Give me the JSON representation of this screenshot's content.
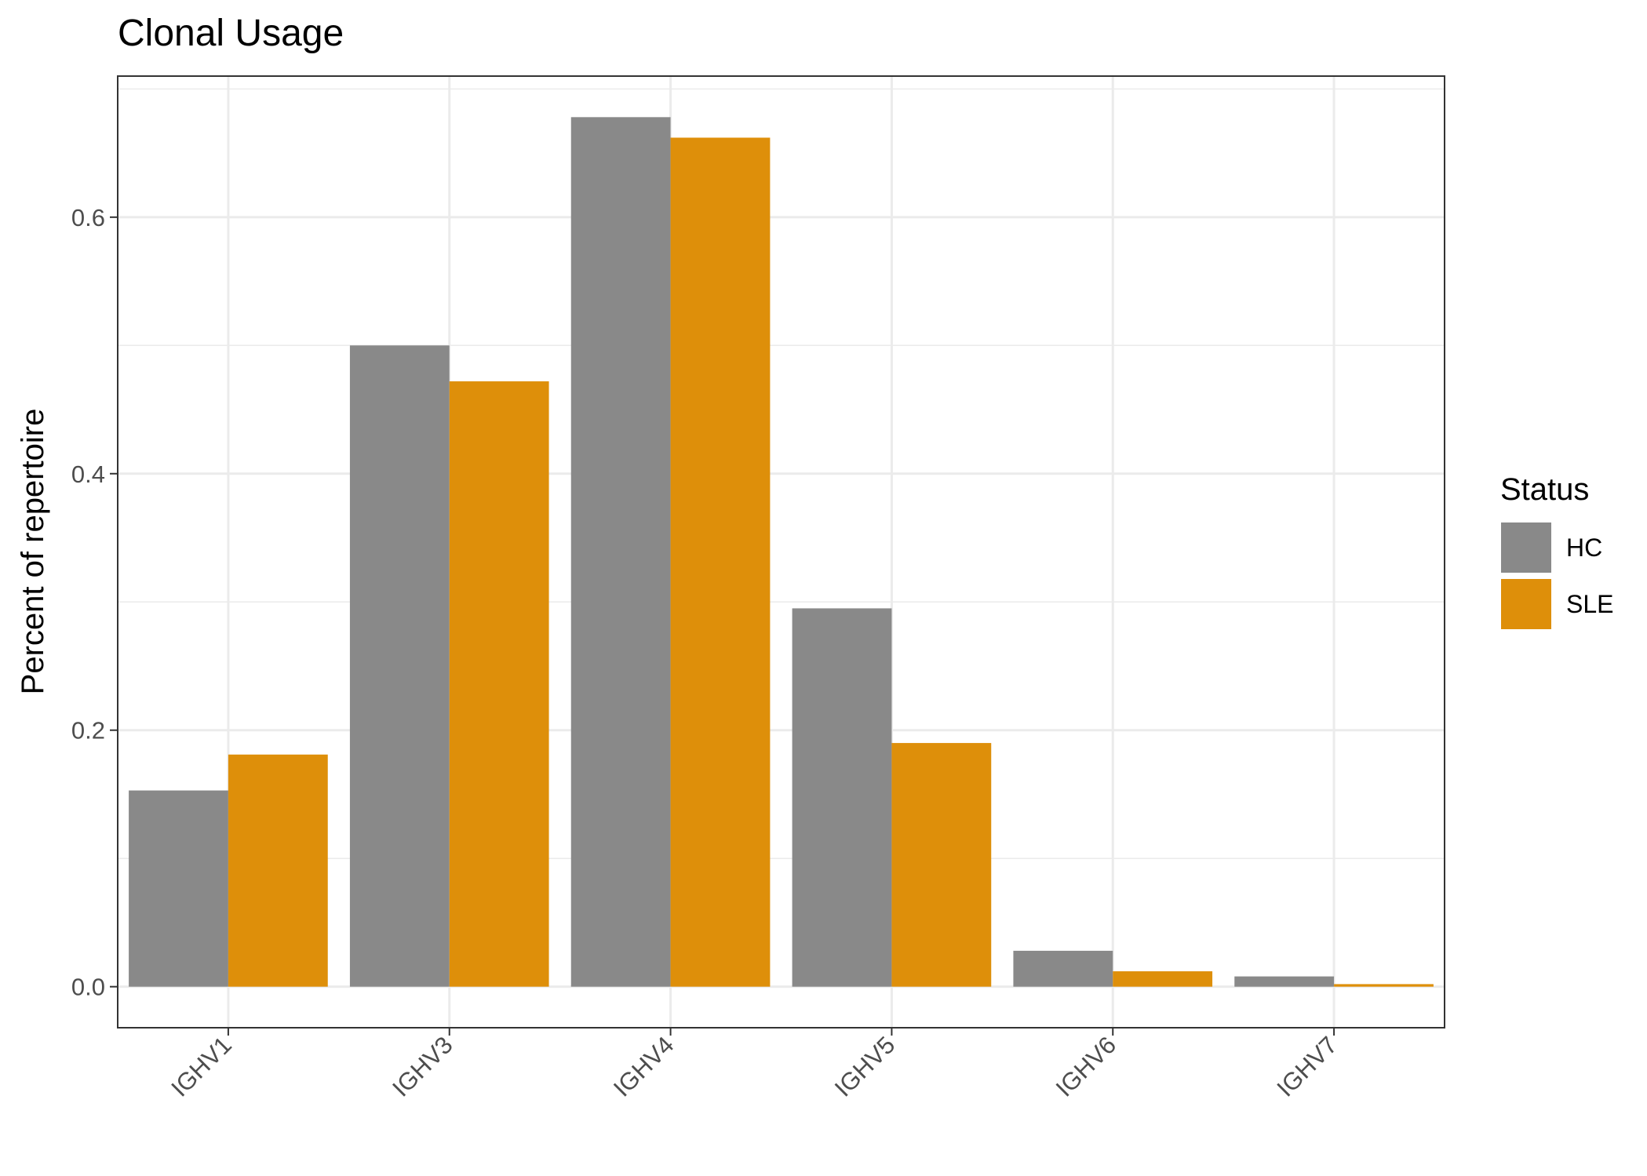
{
  "chart_data": {
    "type": "bar",
    "title": "Clonal Usage",
    "xlabel": "",
    "ylabel": "Percent of repertoire",
    "categories": [
      "IGHV1",
      "IGHV3",
      "IGHV4",
      "IGHV5",
      "IGHV6",
      "IGHV7"
    ],
    "series": [
      {
        "name": "HC",
        "color": "#898989",
        "values": [
          0.153,
          0.5,
          0.678,
          0.295,
          0.028,
          0.008
        ]
      },
      {
        "name": "SLE",
        "color": "#DE8F0A",
        "values": [
          0.181,
          0.472,
          0.662,
          0.19,
          0.012,
          0.002
        ]
      }
    ],
    "ylim": [
      -0.032,
      0.71
    ],
    "yticks": [
      0.0,
      0.2,
      0.4,
      0.6
    ],
    "ytick_labels": [
      "0.0",
      "0.2",
      "0.4",
      "0.6"
    ],
    "grid": true,
    "legend": {
      "title": "Status",
      "position": "right"
    }
  }
}
